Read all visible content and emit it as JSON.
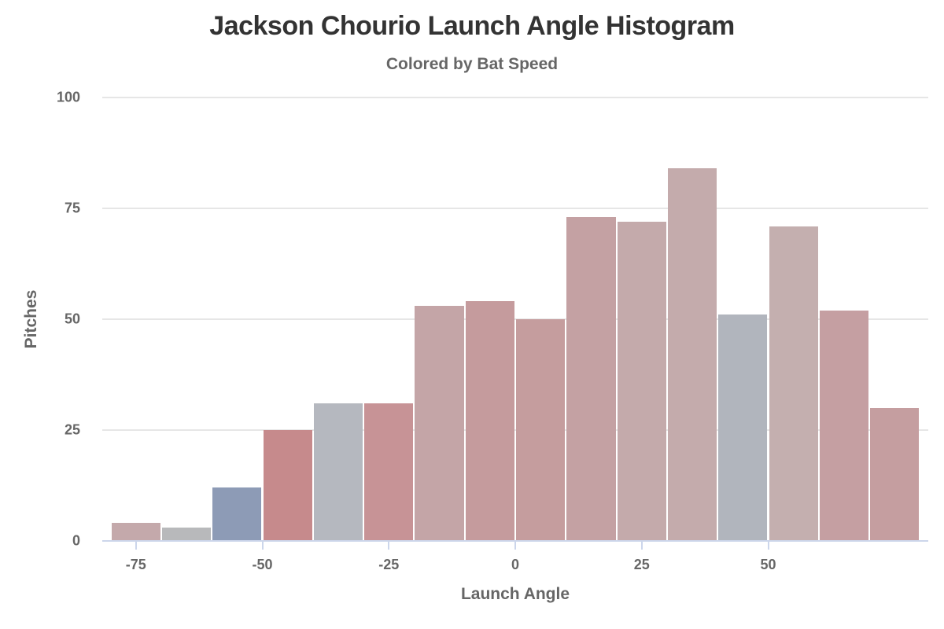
{
  "header": {
    "title": "Jackson Chourio Launch Angle Histogram",
    "subtitle": "Colored by Bat Speed"
  },
  "axes": {
    "xlabel": "Launch Angle",
    "ylabel": "Pitches",
    "yticks": [
      "0",
      "25",
      "50",
      "75",
      "100"
    ],
    "xticks": [
      "-75",
      "-50",
      "-25",
      "0",
      "25",
      "50"
    ]
  },
  "chart_data": {
    "type": "bar",
    "title": "Jackson Chourio Launch Angle Histogram",
    "subtitle": "Colored by Bat Speed",
    "xlabel": "Launch Angle",
    "ylabel": "Pitches",
    "ylim": [
      0,
      100
    ],
    "xlim": [
      -80,
      80
    ],
    "grid": true,
    "legend": null,
    "bin_width": 10,
    "bins": [
      {
        "x0": -80,
        "x1": -70,
        "count": 4,
        "color": "#c4a9ab"
      },
      {
        "x0": -70,
        "x1": -60,
        "count": 3,
        "color": "#b8b9bb"
      },
      {
        "x0": -60,
        "x1": -50,
        "count": 12,
        "color": "#8d9bb6"
      },
      {
        "x0": -50,
        "x1": -40,
        "count": 25,
        "color": "#c68a8c"
      },
      {
        "x0": -40,
        "x1": -30,
        "count": 31,
        "color": "#b5b8bf"
      },
      {
        "x0": -30,
        "x1": -20,
        "count": 31,
        "color": "#c79396"
      },
      {
        "x0": -20,
        "x1": -10,
        "count": 53,
        "color": "#c4a5a7"
      },
      {
        "x0": -10,
        "x1": 0,
        "count": 54,
        "color": "#c59b9d"
      },
      {
        "x0": 0,
        "x1": 10,
        "count": 50,
        "color": "#c59d9e"
      },
      {
        "x0": 10,
        "x1": 20,
        "count": 73,
        "color": "#c4a1a3"
      },
      {
        "x0": 20,
        "x1": 30,
        "count": 72,
        "color": "#c4aaab"
      },
      {
        "x0": 30,
        "x1": 40,
        "count": 84,
        "color": "#c4abac"
      },
      {
        "x0": 40,
        "x1": 50,
        "count": 51,
        "color": "#b1b5bd"
      },
      {
        "x0": 50,
        "x1": 60,
        "count": 71,
        "color": "#c4afaf"
      },
      {
        "x0": 60,
        "x1": 70,
        "count": 52,
        "color": "#c59fa2"
      },
      {
        "x0": 70,
        "x1": 80,
        "count": 30,
        "color": "#c59ea0"
      }
    ],
    "categories": [
      "-80 to -70",
      "-70 to -60",
      "-60 to -50",
      "-50 to -40",
      "-40 to -30",
      "-30 to -20",
      "-20 to -10",
      "-10 to 0",
      "0 to 10",
      "10 to 20",
      "20 to 30",
      "30 to 40",
      "40 to 50",
      "50 to 60",
      "60 to 70",
      "70 to 80"
    ],
    "values": [
      4,
      3,
      12,
      25,
      31,
      31,
      53,
      54,
      50,
      73,
      72,
      84,
      51,
      71,
      52,
      30
    ]
  }
}
